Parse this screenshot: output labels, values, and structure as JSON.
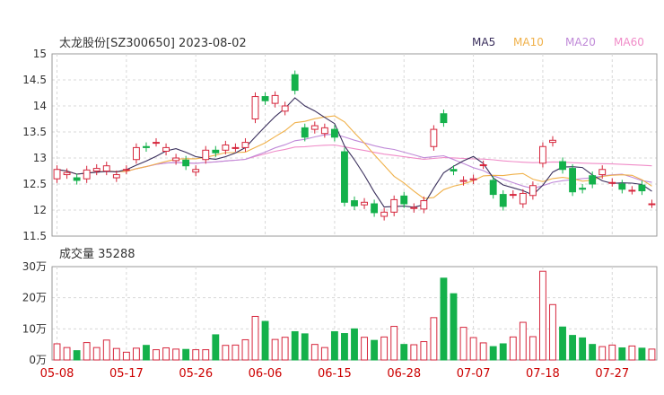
{
  "header": {
    "title": "太龙股份[SZ300650] 2023-08-02",
    "volume_label": "成交量 35288"
  },
  "legend": [
    {
      "name": "MA5",
      "color": "#3a2f5c"
    },
    {
      "name": "MA10",
      "color": "#f0b14a"
    },
    {
      "name": "MA20",
      "color": "#c08ad8"
    },
    {
      "name": "MA60",
      "color": "#f08cc8"
    }
  ],
  "colors": {
    "up": "#d6263c",
    "down": "#14b14b"
  },
  "chart_data": [
    {
      "type": "candlestick",
      "ylim": [
        11.5,
        15
      ],
      "yticks": [
        "15",
        "14.5",
        "14",
        "13.5",
        "13",
        "12.5",
        "12",
        "11.5"
      ],
      "xtick_labels": [
        "05-08",
        "05-17",
        "05-26",
        "06-06",
        "06-15",
        "06-28",
        "07-07",
        "07-18",
        "07-27"
      ],
      "xtick_index": [
        0,
        7,
        14,
        21,
        28,
        35,
        42,
        49,
        56
      ],
      "dates": [
        "05-08",
        "05-09",
        "05-10",
        "05-11",
        "05-12",
        "05-15",
        "05-16",
        "05-17",
        "05-18",
        "05-19",
        "05-22",
        "05-23",
        "05-24",
        "05-25",
        "05-26",
        "05-29",
        "05-30",
        "05-31",
        "06-01",
        "06-02",
        "06-05",
        "06-06",
        "06-07",
        "06-08",
        "06-09",
        "06-12",
        "06-13",
        "06-14",
        "06-15",
        "06-16",
        "06-19",
        "06-20",
        "06-21",
        "06-26",
        "06-27",
        "06-28",
        "06-29",
        "06-30",
        "07-03",
        "07-04",
        "07-05",
        "07-06",
        "07-07",
        "07-10",
        "07-11",
        "07-12",
        "07-13",
        "07-14",
        "07-17",
        "07-18",
        "07-19",
        "07-20",
        "07-21",
        "07-24",
        "07-25",
        "07-26",
        "07-27",
        "07-28",
        "07-31",
        "08-01",
        "08-02"
      ],
      "open": [
        12.6,
        12.68,
        12.62,
        12.6,
        12.75,
        12.75,
        12.62,
        12.77,
        12.97,
        13.22,
        13.3,
        13.13,
        12.95,
        12.96,
        12.73,
        12.97,
        13.15,
        13.15,
        13.2,
        13.2,
        13.75,
        14.18,
        14.05,
        13.9,
        14.6,
        13.58,
        13.55,
        13.47,
        13.55,
        13.12,
        12.18,
        12.1,
        12.12,
        11.88,
        11.96,
        12.27,
        12.03,
        12.02,
        13.22,
        13.85,
        12.78,
        12.55,
        12.58,
        12.87,
        12.57,
        12.3,
        12.3,
        12.12,
        12.28,
        12.9,
        13.3,
        12.93,
        12.8,
        12.42,
        12.66,
        12.68,
        12.53,
        12.5,
        12.38,
        12.48,
        12.12
      ],
      "close": [
        12.78,
        12.72,
        12.57,
        12.77,
        12.8,
        12.85,
        12.68,
        12.78,
        13.2,
        13.2,
        13.3,
        13.2,
        13.0,
        12.85,
        12.78,
        13.15,
        13.1,
        13.25,
        13.2,
        13.3,
        14.18,
        14.1,
        14.2,
        14.0,
        14.3,
        13.4,
        13.62,
        13.58,
        13.4,
        12.15,
        12.08,
        12.15,
        11.95,
        11.96,
        12.2,
        12.12,
        12.05,
        12.18,
        13.55,
        13.68,
        12.75,
        12.57,
        12.6,
        12.87,
        12.3,
        12.07,
        12.3,
        12.32,
        12.47,
        13.22,
        13.34,
        12.78,
        12.35,
        12.4,
        12.5,
        12.78,
        12.53,
        12.4,
        12.38,
        12.37,
        12.12
      ]
    },
    {
      "type": "bar",
      "ylim": [
        0,
        300000
      ],
      "yticks": [
        "30万",
        "20万",
        "10万",
        "0万"
      ],
      "values": [
        52000,
        40000,
        30000,
        56000,
        40000,
        64000,
        37000,
        25000,
        38000,
        47000,
        33000,
        39000,
        35000,
        34000,
        33000,
        33000,
        81000,
        47000,
        48000,
        65000,
        140000,
        124000,
        66000,
        73000,
        91000,
        84000,
        50000,
        40000,
        91000,
        85000,
        100000,
        73000,
        63000,
        74000,
        108000,
        50000,
        49000,
        59000,
        136000,
        263000,
        213000,
        105000,
        72000,
        55000,
        43000,
        52000,
        74000,
        121000,
        75000,
        285000,
        178000,
        106000,
        79000,
        71000,
        50000,
        43000,
        48000,
        39000,
        45000,
        38000,
        35000
      ]
    }
  ]
}
